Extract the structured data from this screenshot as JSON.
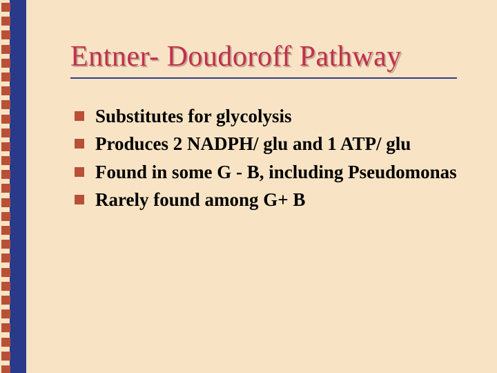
{
  "slide": {
    "title": "Entner- Doudoroff Pathway",
    "bullets": [
      "Substitutes for glycolysis",
      "Produces 2 NADPH/ glu and 1 ATP/ glu",
      "Found in some G - B, including Pseudomonas",
      "Rarely found among G+ B"
    ]
  },
  "style": {
    "background_color": "#f8e4c4",
    "left_bar_color": "#2a3a8a",
    "square_color": "#b85038",
    "square_count": 27,
    "title_color": "#c03050",
    "title_fontsize": 42,
    "underline_color": "#2a3a8a",
    "bullet_marker_color": "#b85038",
    "body_text_color": "#000000",
    "body_fontsize": 27
  }
}
